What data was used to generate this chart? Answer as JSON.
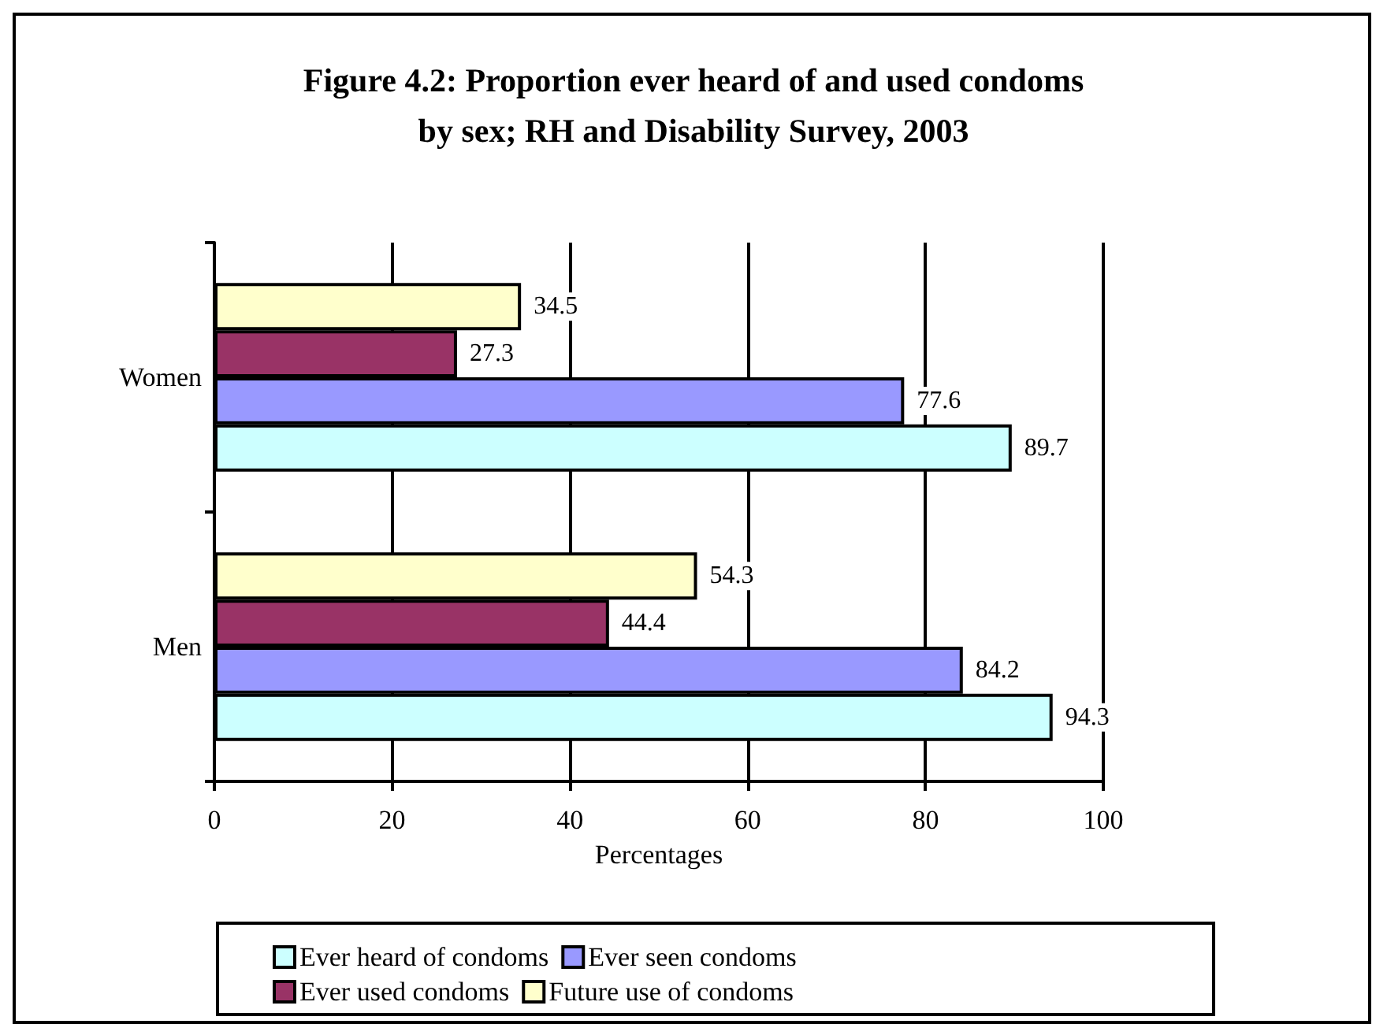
{
  "chart_data": {
    "type": "bar",
    "orientation": "horizontal",
    "title": "Figure 4.2: Proportion ever heard of and used condoms\nby sex; RH and Disability Survey, 2003",
    "xlabel": "Percentages",
    "categories": [
      "Women",
      "Men"
    ],
    "series": [
      {
        "name": "Ever heard of condoms",
        "color": "#ccffff",
        "values": [
          89.7,
          94.3
        ]
      },
      {
        "name": "Ever seen condoms",
        "color": "#9999ff",
        "values": [
          77.6,
          84.2
        ]
      },
      {
        "name": "Ever used condoms",
        "color": "#993366",
        "values": [
          27.3,
          44.4
        ]
      },
      {
        "name": "Future use of condoms",
        "color": "#ffffcc",
        "values": [
          34.5,
          54.3
        ]
      }
    ],
    "xlim": [
      0,
      100
    ],
    "xticks": [
      0,
      20,
      40,
      60,
      80,
      100
    ],
    "grid": "x",
    "legend": "bottom",
    "data_labels": true
  }
}
